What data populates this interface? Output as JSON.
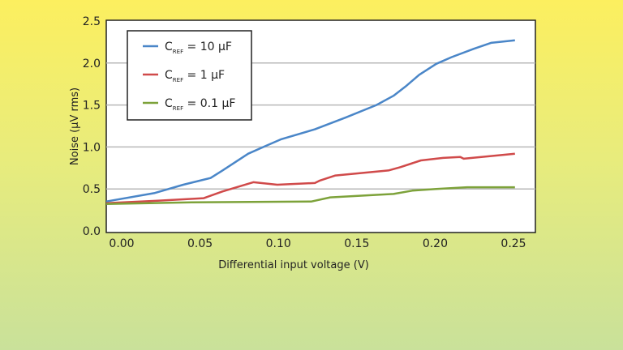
{
  "chart_data": {
    "type": "line",
    "title": "",
    "xlabel": "Differential input voltage (V)",
    "ylabel": "Noise (µV rms)",
    "xlim": [
      0,
      0.25
    ],
    "ylim": [
      0,
      2.5
    ],
    "xticks": [
      "0.00",
      "0.05",
      "0.10",
      "0.15",
      "0.20",
      "0.25"
    ],
    "yticks": [
      "0.0",
      "0.5",
      "1.0",
      "1.5",
      "2.0",
      "2.5"
    ],
    "grid": "horizontal",
    "legend_position": "top-left",
    "series": [
      {
        "name_main": "C",
        "name_sub": "REF",
        "name_rest": " = 10 µF",
        "color": "#4a86c8",
        "x": [
          0,
          0.028,
          0.045,
          0.061,
          0.068,
          0.083,
          0.093,
          0.102,
          0.122,
          0.14,
          0.158,
          0.168,
          0.175,
          0.183,
          0.193,
          0.202,
          0.215,
          0.225,
          0.239
        ],
        "y": [
          0.35,
          0.45,
          0.55,
          0.63,
          0.72,
          0.92,
          1.01,
          1.09,
          1.21,
          1.35,
          1.5,
          1.61,
          1.72,
          1.86,
          1.99,
          2.07,
          2.17,
          2.24,
          2.27
        ]
      },
      {
        "name_main": "C",
        "name_sub": "REF",
        "name_rest": " = 1 µF",
        "color": "#d04a4a",
        "x": [
          0,
          0.03,
          0.057,
          0.068,
          0.086,
          0.1,
          0.122,
          0.125,
          0.134,
          0.165,
          0.172,
          0.184,
          0.197,
          0.207,
          0.209,
          0.239
        ],
        "y": [
          0.33,
          0.36,
          0.39,
          0.47,
          0.58,
          0.55,
          0.57,
          0.6,
          0.66,
          0.72,
          0.76,
          0.84,
          0.87,
          0.88,
          0.86,
          0.92
        ]
      },
      {
        "name_main": "C",
        "name_sub": "REF",
        "name_rest": " = 0.1 µF",
        "color": "#7da23a",
        "x": [
          0,
          0.05,
          0.12,
          0.131,
          0.158,
          0.168,
          0.179,
          0.193,
          0.211,
          0.239
        ],
        "y": [
          0.32,
          0.34,
          0.35,
          0.4,
          0.43,
          0.44,
          0.48,
          0.5,
          0.52,
          0.52
        ]
      }
    ]
  }
}
